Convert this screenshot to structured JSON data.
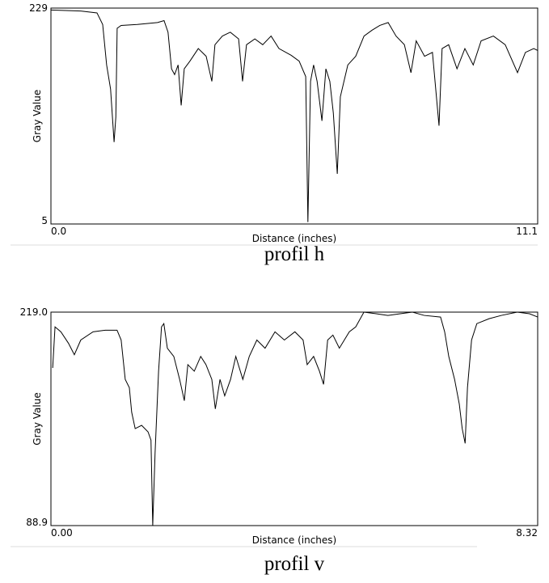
{
  "chart_data": [
    {
      "type": "line",
      "caption": "profil h",
      "xlabel": "Distance (inches)",
      "ylabel": "Gray Value",
      "color": "#000000",
      "xlim": [
        0,
        11.1
      ],
      "ylim": [
        5,
        229
      ],
      "xticks": [
        {
          "value": 0,
          "label": "0.0"
        },
        11.1
      ],
      "yticks": [
        5,
        229
      ],
      "x": [
        0,
        0.68,
        1.05,
        1.18,
        1.27,
        1.36,
        1.44,
        1.48,
        1.51,
        1.6,
        1.97,
        2.43,
        2.58,
        2.67,
        2.75,
        2.82,
        2.9,
        2.97,
        3.04,
        3.17,
        3.36,
        3.54,
        3.67,
        3.74,
        3.91,
        4.09,
        4.28,
        4.37,
        4.46,
        4.65,
        4.83,
        5.02,
        5.2,
        5.48,
        5.66,
        5.81,
        5.86,
        5.92,
        5.99,
        6.07,
        6.18,
        6.27,
        6.36,
        6.44,
        6.53,
        6.6,
        6.77,
        6.95,
        7.14,
        7.32,
        7.5,
        7.69,
        7.87,
        8.06,
        8.21,
        8.33,
        8.52,
        8.7,
        8.85,
        8.92,
        9.07,
        9.26,
        9.44,
        9.63,
        9.81,
        10.09,
        10.36,
        10.64,
        10.82,
        11.01,
        11.1
      ],
      "values": [
        227,
        226,
        224,
        212,
        170,
        145,
        90,
        116,
        208,
        211,
        212,
        214,
        216,
        204,
        166,
        160,
        170,
        128,
        166,
        174,
        187,
        179,
        153,
        191,
        200,
        204,
        197,
        153,
        191,
        197,
        191,
        200,
        187,
        180,
        174,
        158,
        7,
        153,
        170,
        153,
        112,
        166,
        153,
        120,
        57,
        137,
        170,
        179,
        200,
        206,
        211,
        214,
        200,
        191,
        162,
        195,
        179,
        183,
        107,
        187,
        191,
        166,
        187,
        170,
        195,
        200,
        191,
        162,
        183,
        187,
        185
      ]
    },
    {
      "type": "line",
      "caption": "profil v",
      "xlabel": "Distance (inches)",
      "ylabel": "Gray Value",
      "color": "#000000",
      "xlim": [
        0,
        8.32
      ],
      "ylim": [
        88.9,
        219
      ],
      "xticks": [
        {
          "value": 0,
          "label": "0.00"
        },
        8.32
      ],
      "yticks": [
        88.9,
        {
          "value": 219,
          "label": "219.0"
        }
      ],
      "x": [
        0.03,
        0.07,
        0.17,
        0.3,
        0.4,
        0.51,
        0.72,
        0.93,
        1.13,
        1.2,
        1.27,
        1.34,
        1.38,
        1.44,
        1.55,
        1.66,
        1.71,
        1.74,
        1.78,
        1.84,
        1.89,
        1.93,
        1.99,
        2.1,
        2.2,
        2.28,
        2.34,
        2.45,
        2.56,
        2.65,
        2.75,
        2.81,
        2.89,
        2.97,
        3.07,
        3.16,
        3.28,
        3.39,
        3.52,
        3.66,
        3.83,
        3.99,
        4.17,
        4.31,
        4.38,
        4.49,
        4.59,
        4.66,
        4.73,
        4.82,
        4.93,
        5.1,
        5.21,
        5.35,
        5.56,
        5.76,
        5.97,
        6.18,
        6.38,
        6.66,
        6.73,
        6.8,
        6.9,
        6.98,
        7.03,
        7.08,
        7.12,
        7.19,
        7.28,
        7.49,
        7.7,
        7.97,
        8.18,
        8.32
      ],
      "values": [
        185,
        210,
        207,
        200,
        193,
        202,
        207,
        208,
        208,
        202,
        178,
        173,
        158,
        148,
        150,
        146,
        141,
        89,
        133,
        183,
        210,
        212,
        197,
        192,
        178,
        165,
        187,
        183,
        192,
        187,
        178,
        160,
        178,
        168,
        178,
        192,
        178,
        192,
        202,
        197,
        207,
        202,
        207,
        202,
        187,
        192,
        183,
        175,
        202,
        205,
        197,
        207,
        210,
        219,
        218,
        217,
        218,
        219,
        217,
        216,
        207,
        192,
        178,
        163,
        148,
        139,
        173,
        202,
        212,
        215,
        217,
        219,
        218,
        216
      ]
    }
  ]
}
